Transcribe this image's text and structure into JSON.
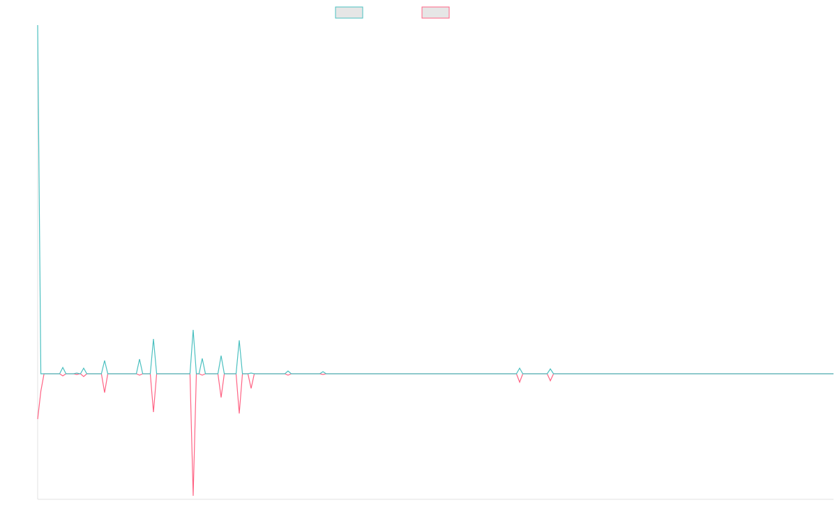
{
  "chart_data": {
    "type": "line",
    "x": [
      0,
      0.4,
      0.8,
      2.76,
      3.16,
      3.56,
      4.51,
      4.91,
      5.31,
      5.38,
      5.78,
      6.18,
      8.01,
      8.41,
      8.81,
      12.4,
      12.8,
      13.2,
      14.15,
      14.55,
      14.95,
      19.14,
      19.54,
      19.94,
      20.28,
      20.68,
      21.08,
      22.65,
      23.05,
      23.45,
      24.93,
      25.33,
      25.73,
      26.42,
      26.82,
      27.22,
      31.06,
      31.46,
      31.86,
      35.45,
      35.85,
      36.25,
      60.16,
      60.56,
      60.96,
      64.02,
      64.42,
      64.82,
      100
    ],
    "xlim": [
      0,
      100
    ],
    "ylim": [
      -36,
      100
    ],
    "series": [
      {
        "color": "#ff6384",
        "values": [
          -13,
          -5,
          0,
          0,
          -0.6,
          0,
          0,
          -0.2,
          0,
          0,
          -0.8,
          0,
          0,
          -5.4,
          0,
          0,
          -0.4,
          0,
          0,
          -11,
          0,
          0,
          -35,
          0,
          0,
          -0.4,
          0,
          0,
          -6.8,
          0,
          0,
          -11.4,
          0,
          0,
          -4.2,
          0,
          0,
          -0.4,
          0,
          0,
          -0.2,
          0,
          0,
          -2.4,
          0,
          0,
          -2,
          0,
          0
        ]
      },
      {
        "color": "#4bc0c0",
        "values": [
          100,
          0,
          0,
          0,
          1.8,
          0,
          0,
          0.2,
          0,
          0,
          1.6,
          0,
          0,
          3.8,
          0,
          0,
          4.2,
          0,
          0,
          10,
          0,
          0,
          12.6,
          0,
          0,
          4.4,
          0,
          0,
          5.2,
          0,
          0,
          9.6,
          0,
          0,
          0.2,
          0,
          0,
          0.8,
          0,
          0,
          0.6,
          0,
          0,
          1.6,
          0,
          0,
          1.4,
          0,
          0
        ]
      }
    ]
  }
}
